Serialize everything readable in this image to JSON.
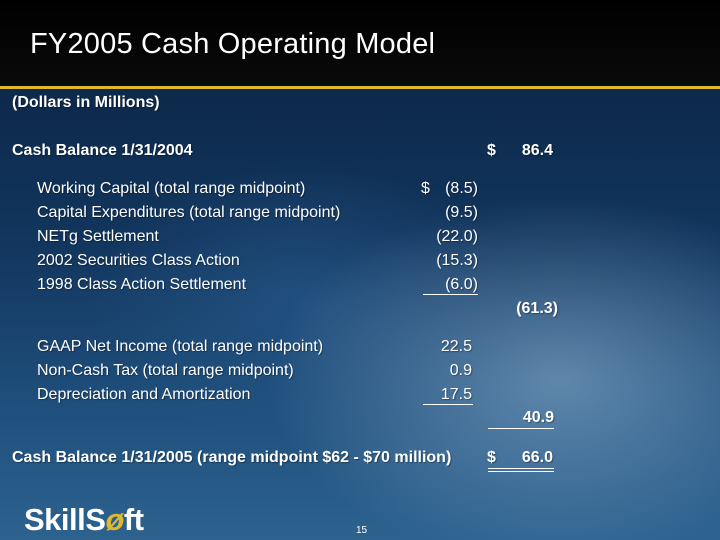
{
  "slide": {
    "title": "FY2005 Cash Operating Model",
    "units": "(Dollars in Millions)",
    "page_number": "15"
  },
  "model": {
    "opening": {
      "label": "Cash Balance 1/31/2004",
      "currency": "$",
      "value": "86.4"
    },
    "uses": [
      {
        "label": "Working Capital (total range midpoint)",
        "currency": "$",
        "value": "(8.5)"
      },
      {
        "label": "Capital Expenditures (total range midpoint)",
        "currency": "",
        "value": "(9.5)"
      },
      {
        "label": "NETg Settlement",
        "currency": "",
        "value": "(22.0)"
      },
      {
        "label": "2002 Securities Class Action",
        "currency": "",
        "value": "(15.3)"
      },
      {
        "label": "1998 Class Action Settlement",
        "currency": "",
        "value": "(6.0)"
      }
    ],
    "uses_total": "(61.3)",
    "sources": [
      {
        "label": "GAAP Net Income (total range midpoint)",
        "value": "22.5"
      },
      {
        "label": "Non-Cash Tax (total range midpoint)",
        "value": "0.9"
      },
      {
        "label": "Depreciation and Amortization",
        "value": "17.5"
      }
    ],
    "sources_total": "40.9",
    "closing": {
      "label": "Cash Balance 1/31/2005 (range midpoint $62 - $70 million)",
      "currency": "$",
      "value": "66.0"
    }
  },
  "brand": {
    "logo_text_a": "SkillS",
    "logo_text_b": "ft",
    "logo_glyph": "ø",
    "accent_color": "#e0b830"
  }
}
